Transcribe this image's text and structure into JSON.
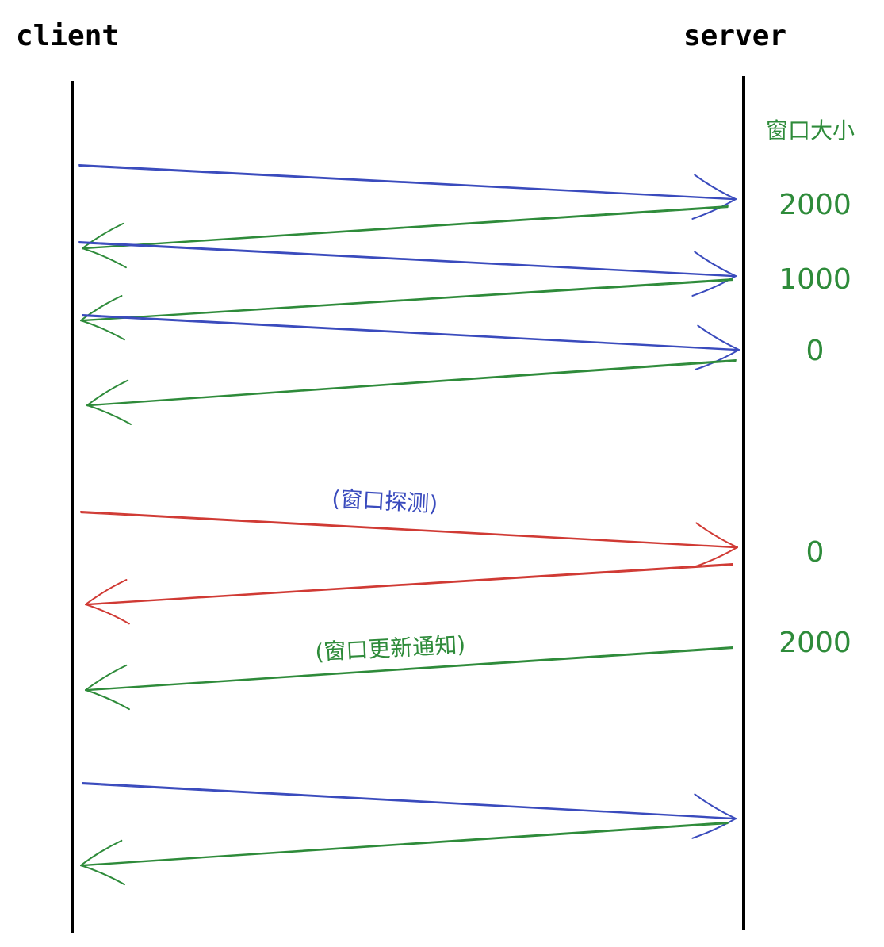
{
  "labels": {
    "client": "client",
    "server": "server",
    "window_size_header": "窗口大小",
    "probe_note": "(窗口探测)",
    "update_note": "(窗口更新通知)"
  },
  "window_sizes": [
    "2000",
    "1000",
    "0",
    "0",
    "2000"
  ],
  "colors": {
    "lifeline": "#000000",
    "data": "#3a4bbd",
    "ack": "#2e8b3a",
    "probe": "#d03a34",
    "window_text": "#2e8b3a",
    "probe_note": "#3a4bbd",
    "update_note": "#2e8b3a"
  }
}
